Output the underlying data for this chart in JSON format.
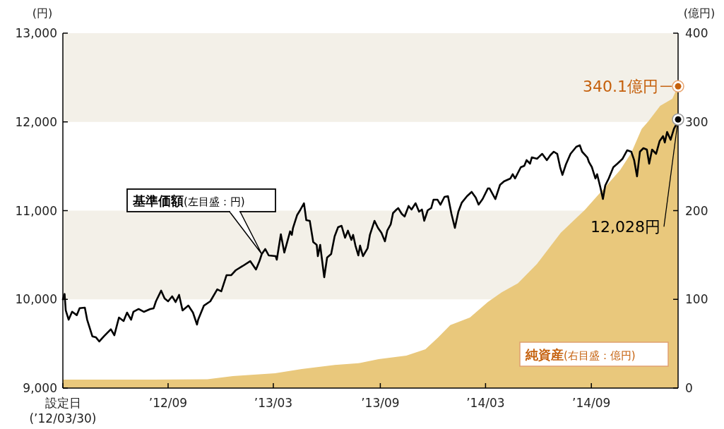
{
  "chart_data": {
    "type": "line",
    "ylabel": "(円)",
    "y2label": "(億円)",
    "xlim": [
      "2012-03-30",
      "2015-02-27"
    ],
    "xticks": [
      {
        "value": "2012-03-30",
        "label": "設定日 (’12/03/30)"
      },
      {
        "value": "2012-09-28",
        "label": "’12/09"
      },
      {
        "value": "2013-03-29",
        "label": "’13/03"
      },
      {
        "value": "2013-09-30",
        "label": "’13/09"
      },
      {
        "value": "2014-03-31",
        "label": "’14/03"
      },
      {
        "value": "2014-09-30",
        "label": "’14/09"
      }
    ],
    "ylim": [
      9000,
      13000
    ],
    "yticks": [
      {
        "value": 9000,
        "label": "9,000"
      },
      {
        "value": 10000,
        "label": "10,000"
      },
      {
        "value": 11000,
        "label": "11,000"
      },
      {
        "value": 12000,
        "label": "12,000"
      },
      {
        "value": 13000,
        "label": "13,000"
      }
    ],
    "y2lim": [
      0,
      400
    ],
    "y2ticks": [
      0,
      100,
      200,
      300,
      400
    ],
    "bands": [
      {
        "axis": "y",
        "from": 10000,
        "to": 11000,
        "color": "#f3f0e8"
      },
      {
        "axis": "y",
        "from": 12000,
        "to": 13000,
        "color": "#f3f0e8"
      }
    ],
    "series": [
      {
        "name": "純資産(右目盛：億円)",
        "type": "area",
        "axis": "y2",
        "color": "#e9c87c",
        "x": [
          "2012-03-30",
          "2012-09-04",
          "2012-12-05",
          "2013-01-18",
          "2013-04-01",
          "2013-05-17",
          "2013-07-13",
          "2013-08-23",
          "2013-09-27",
          "2013-11-14",
          "2013-12-17",
          "2014-01-08",
          "2014-01-29",
          "2014-03-04",
          "2014-04-04",
          "2014-04-28",
          "2014-05-26",
          "2014-06-28",
          "2014-08-08",
          "2014-09-19",
          "2014-10-08",
          "2014-10-30",
          "2014-11-19",
          "2014-12-08",
          "2014-12-26",
          "2015-01-07",
          "2015-01-27",
          "2015-02-17",
          "2015-02-27"
        ],
        "values": [
          9.5,
          9.5,
          10,
          13.5,
          16.7,
          21.5,
          26,
          28,
          32.6,
          36.6,
          43.7,
          57,
          71,
          79.5,
          97,
          108,
          118,
          140,
          175,
          201,
          215,
          231,
          246,
          265,
          292,
          301,
          318,
          326,
          340.1
        ],
        "value_labels": [
          null,
          null,
          null,
          null,
          null,
          null,
          null,
          null,
          null,
          null,
          null,
          null,
          null,
          null,
          null,
          null,
          null,
          null,
          null,
          null,
          null,
          null,
          null,
          null,
          null,
          null,
          null,
          null,
          "340.1億円"
        ]
      },
      {
        "name": "基準価額(左目盛：円)",
        "color": "#000000",
        "x": [
          "2012-03-30",
          "2012-04-02",
          "2012-04-04",
          "2012-04-09",
          "2012-04-15",
          "2012-04-23",
          "2012-04-28",
          "2012-05-07",
          "2012-05-11",
          "2012-05-20",
          "2012-05-26",
          "2012-06-01",
          "2012-06-09",
          "2012-06-21",
          "2012-06-27",
          "2012-07-05",
          "2012-07-13",
          "2012-07-19",
          "2012-07-26",
          "2012-07-30",
          "2012-08-08",
          "2012-08-17",
          "2012-08-28",
          "2012-09-03",
          "2012-09-07",
          "2012-09-16",
          "2012-09-22",
          "2012-09-28",
          "2012-10-05",
          "2012-10-11",
          "2012-10-17",
          "2012-10-23",
          "2012-11-02",
          "2012-11-10",
          "2012-11-17",
          "2012-11-19",
          "2012-11-29",
          "2012-12-10",
          "2012-12-22",
          "2012-12-29",
          "2013-01-07",
          "2013-01-15",
          "2013-01-23",
          "2013-02-04",
          "2013-02-17",
          "2013-02-27",
          "2013-03-05",
          "2013-03-09",
          "2013-03-15",
          "2013-03-21",
          "2013-04-02",
          "2013-04-04",
          "2013-04-11",
          "2013-04-17",
          "2013-04-27",
          "2013-04-30",
          "2013-05-02",
          "2013-05-09",
          "2013-05-15",
          "2013-05-21",
          "2013-05-25",
          "2013-05-31",
          "2013-06-06",
          "2013-06-12",
          "2013-06-14",
          "2013-06-18",
          "2013-06-23",
          "2013-06-25",
          "2013-06-30",
          "2013-07-07",
          "2013-07-13",
          "2013-07-19",
          "2013-07-25",
          "2013-07-31",
          "2013-08-05",
          "2013-08-11",
          "2013-08-14",
          "2013-08-18",
          "2013-08-23",
          "2013-08-26",
          "2013-08-31",
          "2013-09-08",
          "2013-09-12",
          "2013-09-20",
          "2013-09-26",
          "2013-10-02",
          "2013-10-08",
          "2013-10-12",
          "2013-10-18",
          "2013-10-22",
          "2013-10-28",
          "2013-10-31",
          "2013-11-06",
          "2013-11-11",
          "2013-11-18",
          "2013-11-23",
          "2013-11-30",
          "2013-12-06",
          "2013-12-11",
          "2013-12-15",
          "2013-12-21",
          "2013-12-27",
          "2013-12-31",
          "2014-01-07",
          "2014-01-12",
          "2014-01-19",
          "2014-01-25",
          "2014-01-31",
          "2014-02-06",
          "2014-02-12",
          "2014-02-18",
          "2014-02-27",
          "2014-03-07",
          "2014-03-14",
          "2014-03-19",
          "2014-03-26",
          "2014-04-04",
          "2014-04-07",
          "2014-04-17",
          "2014-04-25",
          "2014-05-02",
          "2014-05-13",
          "2014-05-17",
          "2014-05-21",
          "2014-05-31",
          "2014-06-06",
          "2014-06-10",
          "2014-06-16",
          "2014-06-19",
          "2014-06-28",
          "2014-07-07",
          "2014-07-15",
          "2014-07-21",
          "2014-07-27",
          "2014-08-02",
          "2014-08-07",
          "2014-08-11",
          "2014-08-17",
          "2014-08-25",
          "2014-08-31",
          "2014-09-04",
          "2014-09-10",
          "2014-09-14",
          "2014-09-23",
          "2014-09-26",
          "2014-10-01",
          "2014-10-07",
          "2014-10-10",
          "2014-10-16",
          "2014-10-20",
          "2014-10-24",
          "2014-10-30",
          "2014-11-07",
          "2014-11-14",
          "2014-11-23",
          "2014-12-01",
          "2014-12-08",
          "2014-12-13",
          "2014-12-18",
          "2014-12-23",
          "2014-12-29",
          "2015-01-04",
          "2015-01-08",
          "2015-01-13",
          "2015-01-20",
          "2015-01-26",
          "2015-02-01",
          "2015-02-04",
          "2015-02-08",
          "2015-02-14",
          "2015-02-20",
          "2015-02-25",
          "2015-02-27"
        ],
        "values": [
          10000,
          10060,
          9875,
          9771,
          9861,
          9822,
          9901,
          9907,
          9771,
          9583,
          9573,
          9525,
          9583,
          9663,
          9596,
          9795,
          9756,
          9851,
          9771,
          9859,
          9891,
          9859,
          9891,
          9899,
          9978,
          10098,
          10010,
          9978,
          10034,
          9970,
          10050,
          9875,
          9930,
          9851,
          9716,
          9771,
          9930,
          9978,
          10113,
          10090,
          10272,
          10272,
          10328,
          10376,
          10431,
          10336,
          10431,
          10511,
          10567,
          10495,
          10487,
          10447,
          10734,
          10527,
          10766,
          10726,
          10805,
          10948,
          11012,
          11083,
          10893,
          10885,
          10646,
          10614,
          10487,
          10614,
          10352,
          10249,
          10471,
          10511,
          10710,
          10813,
          10829,
          10694,
          10774,
          10670,
          10726,
          10606,
          10495,
          10606,
          10487,
          10575,
          10726,
          10885,
          10805,
          10750,
          10654,
          10774,
          10845,
          10972,
          11012,
          11028,
          10964,
          10933,
          11052,
          11012,
          11083,
          10988,
          11012,
          10885,
          11004,
          11028,
          11123,
          11123,
          11067,
          11155,
          11163,
          10964,
          10805,
          10988,
          11091,
          11163,
          11211,
          11147,
          11068,
          11131,
          11250,
          11250,
          11131,
          11290,
          11330,
          11362,
          11410,
          11362,
          11489,
          11505,
          11569,
          11529,
          11600,
          11585,
          11640,
          11569,
          11624,
          11664,
          11640,
          11489,
          11402,
          11521,
          11640,
          11688,
          11720,
          11736,
          11664,
          11600,
          11545,
          11489,
          11362,
          11410,
          11250,
          11131,
          11282,
          11362,
          11489,
          11529,
          11585,
          11680,
          11664,
          11569,
          11386,
          11664,
          11704,
          11688,
          11529,
          11688,
          11640,
          11783,
          11839,
          11768,
          11887,
          11799,
          11926,
          11982,
          12028
        ]
      }
    ],
    "annotations": [
      {
        "text": "12,028円",
        "x": "2015-02-27",
        "y": 12028
      }
    ]
  }
}
